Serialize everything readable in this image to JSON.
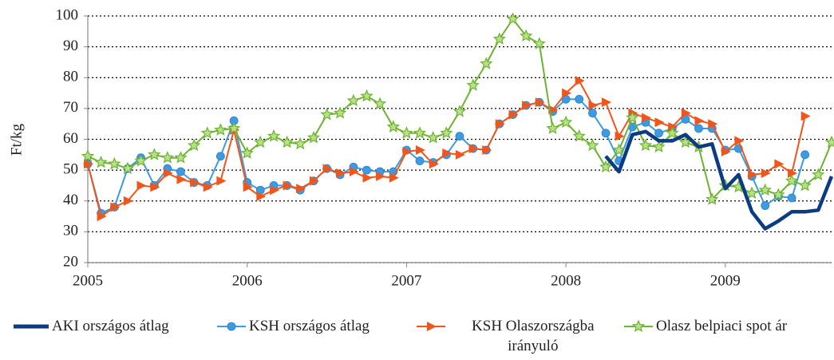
{
  "chart_data": {
    "type": "line",
    "y_label": "Ft/kg",
    "x": [
      2005,
      2005.083,
      2005.167,
      2005.25,
      2005.333,
      2005.417,
      2005.5,
      2005.583,
      2005.667,
      2005.75,
      2005.833,
      2005.917,
      2006,
      2006.083,
      2006.167,
      2006.25,
      2006.333,
      2006.417,
      2006.5,
      2006.583,
      2006.667,
      2006.75,
      2006.833,
      2006.917,
      2007,
      2007.083,
      2007.167,
      2007.25,
      2007.333,
      2007.417,
      2007.5,
      2007.583,
      2007.667,
      2007.75,
      2007.833,
      2007.917,
      2008,
      2008.083,
      2008.167,
      2008.25,
      2008.333,
      2008.417,
      2008.5,
      2008.583,
      2008.667,
      2008.75,
      2008.833,
      2008.917,
      2009,
      2009.083,
      2009.167,
      2009.25,
      2009.333,
      2009.417,
      2009.5,
      2009.583,
      2009.667
    ],
    "series": [
      {
        "name": "AKI országos átlag",
        "color": "#0b3c82",
        "marker": "none",
        "values": [
          null,
          null,
          null,
          null,
          null,
          null,
          null,
          null,
          null,
          null,
          null,
          null,
          null,
          null,
          null,
          null,
          null,
          null,
          null,
          null,
          null,
          null,
          null,
          null,
          null,
          null,
          null,
          null,
          null,
          null,
          null,
          null,
          null,
          null,
          null,
          null,
          null,
          null,
          null,
          54.5,
          49.5,
          61.5,
          62.5,
          59.5,
          59.5,
          61.5,
          57.5,
          58.5,
          44,
          48.5,
          36.5,
          31,
          33.5,
          36.5,
          36.5,
          37,
          48
        ]
      },
      {
        "name": "KSH országos átlag",
        "color": "#3c9be2",
        "marker": "circle",
        "values": [
          52,
          36,
          38,
          50.5,
          54,
          45,
          50.5,
          49.5,
          46,
          45,
          54.5,
          66,
          46,
          43.5,
          45,
          45,
          43.5,
          46.5,
          50.5,
          48.5,
          51,
          50,
          49.5,
          49.5,
          56.5,
          53,
          52.5,
          55,
          61,
          57,
          56.5,
          65,
          68,
          71,
          72,
          69,
          73,
          73,
          68.5,
          62,
          53,
          64,
          65.5,
          62,
          63.5,
          66.5,
          63.5,
          63.5,
          56.5,
          57,
          48,
          38.5,
          41.5,
          41,
          55,
          null,
          null
        ]
      },
      {
        "name": "KSH Olaszországba irányuló",
        "color": "#f0561c",
        "marker": "triangle",
        "values": [
          52,
          35,
          38,
          40,
          45,
          44.5,
          49,
          47,
          46,
          44.5,
          46.5,
          63,
          44.5,
          41.5,
          43.5,
          45,
          44,
          46.5,
          50.5,
          49,
          49.5,
          47.5,
          48,
          47.5,
          56,
          56.5,
          52,
          55.5,
          55,
          57,
          56.5,
          65,
          68,
          71,
          72,
          69.5,
          75,
          79,
          71,
          72,
          61,
          68.5,
          67,
          65.5,
          64,
          68.5,
          66,
          65,
          56,
          59.5,
          48.5,
          49,
          52,
          49,
          67.5,
          null,
          null
        ]
      },
      {
        "name": "Olasz belpiaci spot ár",
        "color": "#6cb32e",
        "marker": "star",
        "values": [
          54.5,
          52.5,
          52,
          50.5,
          53,
          55,
          54,
          54,
          58,
          62,
          63,
          63.5,
          55.5,
          59,
          61,
          59,
          58.5,
          60.5,
          68,
          68.5,
          72.5,
          74,
          71.5,
          64,
          62,
          62,
          60.5,
          62,
          69,
          77.5,
          84.5,
          92.5,
          99,
          93.5,
          91,
          63.5,
          65.5,
          61,
          58,
          51,
          56.5,
          67,
          58,
          57.5,
          62,
          59,
          57.5,
          40.5,
          45,
          44.5,
          42.5,
          43.5,
          42,
          46.5,
          45,
          48.5,
          59
        ]
      }
    ],
    "xlim": [
      2005,
      2009.667
    ],
    "xticks": [
      2005,
      2006,
      2007,
      2008,
      2009
    ],
    "ylim": [
      20,
      100
    ],
    "yticks": [
      20,
      30,
      40,
      50,
      60,
      70,
      80,
      90,
      100
    ],
    "grid": true,
    "legend": "bottom"
  }
}
